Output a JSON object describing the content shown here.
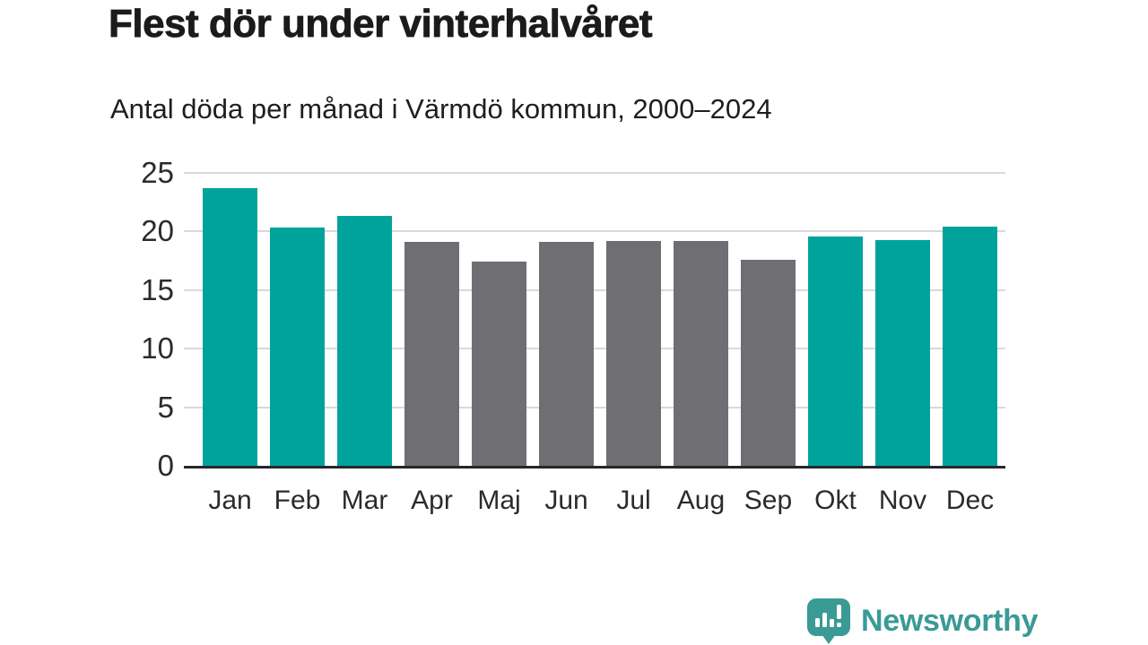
{
  "title": "Flest dör under vinterhalvåret",
  "subtitle": "Antal döda per månad i Värmdö kommun, 2000–2024",
  "chart_data": {
    "type": "bar",
    "title": "Flest dör under vinterhalvåret",
    "subtitle": "Antal döda per månad i Värmdö kommun, 2000–2024",
    "categories": [
      "Jan",
      "Feb",
      "Mar",
      "Apr",
      "Maj",
      "Jun",
      "Jul",
      "Aug",
      "Sep",
      "Okt",
      "Nov",
      "Dec"
    ],
    "values": [
      23.7,
      20.3,
      21.3,
      19.1,
      17.4,
      19.1,
      19.2,
      19.2,
      17.6,
      19.6,
      19.3,
      20.4
    ],
    "groups": [
      "winter",
      "winter",
      "winter",
      "summer",
      "summer",
      "summer",
      "summer",
      "summer",
      "summer",
      "winter",
      "winter",
      "winter"
    ],
    "group_colors": {
      "winter": "#00a39b",
      "summer": "#6e6e73"
    },
    "xlabel": "",
    "ylabel": "",
    "ylim": [
      0,
      25
    ],
    "yticks": [
      0,
      5,
      10,
      15,
      20,
      25
    ],
    "grid": true,
    "legend": false
  },
  "colors": {
    "gridline": "#d9d9d9",
    "axis_line": "#27272b",
    "title_text": "#1b1b1b",
    "axis_text": "#2b2b2b",
    "logo": "#3a9a95"
  },
  "branding": {
    "logo_text": "Newsworthy"
  }
}
